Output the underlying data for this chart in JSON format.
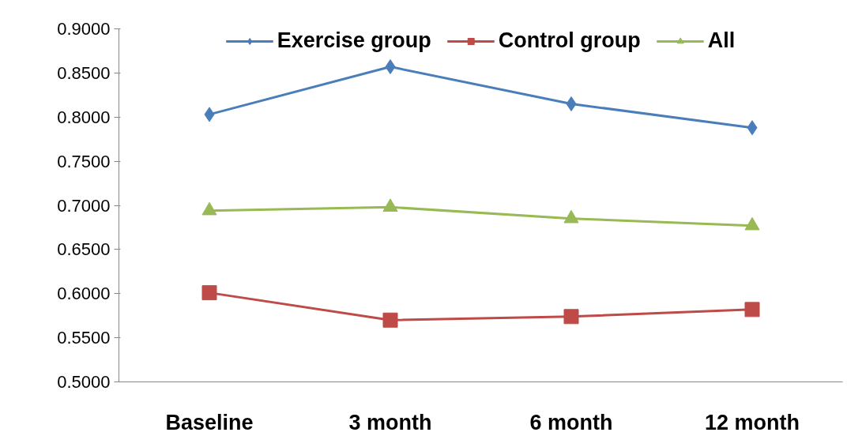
{
  "chart_data": {
    "type": "line",
    "categories": [
      "Baseline",
      "3 month",
      "6 month",
      "12 month"
    ],
    "series": [
      {
        "name": "Exercise group",
        "color": "#4a7ebb",
        "marker": "diamond",
        "values": [
          0.803,
          0.857,
          0.815,
          0.788
        ]
      },
      {
        "name": "Control group",
        "color": "#be4b48",
        "marker": "square",
        "values": [
          0.601,
          0.57,
          0.574,
          0.582
        ]
      },
      {
        "name": "All",
        "color": "#98b954",
        "marker": "triangle",
        "values": [
          0.694,
          0.698,
          0.685,
          0.677
        ]
      }
    ],
    "ylim": [
      0.5,
      0.9
    ],
    "yticks": [
      {
        "value": 0.5,
        "label": "0.5000"
      },
      {
        "value": 0.55,
        "label": "0.5500"
      },
      {
        "value": 0.6,
        "label": "0.6000"
      },
      {
        "value": 0.65,
        "label": "0.6500"
      },
      {
        "value": 0.7,
        "label": "0.7000"
      },
      {
        "value": 0.75,
        "label": "0.7500"
      },
      {
        "value": 0.8,
        "label": "0.8000"
      },
      {
        "value": 0.85,
        "label": "0.8500"
      },
      {
        "value": 0.9,
        "label": "0.9000"
      }
    ],
    "legend": "top",
    "grid": false
  }
}
